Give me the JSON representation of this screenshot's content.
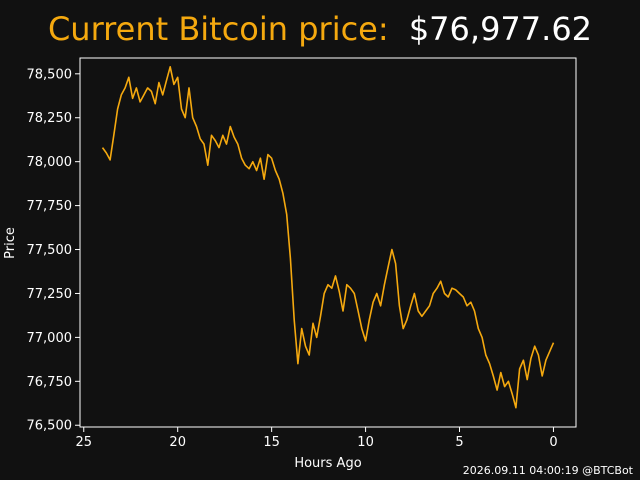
{
  "header": {
    "title_prefix": "Current Bitcoin price:",
    "current_price": "$76,977.62"
  },
  "footer": {
    "timestamp": "2026.09.11 04:00:19 @BTCBot"
  },
  "colors": {
    "background": "#111111",
    "line": "#f5a90f",
    "title_accent": "#f5a90f",
    "text": "#ffffff"
  },
  "chart_data": {
    "type": "line",
    "title": "",
    "xlabel": "Hours Ago",
    "ylabel": "Price",
    "x_reversed": true,
    "xlim": [
      25.2,
      -1.2
    ],
    "ylim": [
      76490,
      78590
    ],
    "xticks": [
      25,
      20,
      15,
      10,
      5,
      0
    ],
    "yticks": [
      76500,
      76750,
      77000,
      77250,
      77500,
      77750,
      78000,
      78250,
      78500
    ],
    "ytick_labels": [
      "76,500",
      "76,750",
      "77,000",
      "77,250",
      "77,500",
      "77,750",
      "78,000",
      "78,250",
      "78,500"
    ],
    "grid": false,
    "series": [
      {
        "x": [
          24.0,
          23.8,
          23.6,
          23.4,
          23.2,
          23.0,
          22.8,
          22.6,
          22.4,
          22.2,
          22.0,
          21.8,
          21.6,
          21.4,
          21.2,
          21.0,
          20.8,
          20.6,
          20.4,
          20.2,
          20.0,
          19.8,
          19.6,
          19.4,
          19.2,
          19.0,
          18.8,
          18.6,
          18.4,
          18.2,
          18.0,
          17.8,
          17.6,
          17.4,
          17.2,
          17.0,
          16.8,
          16.6,
          16.4,
          16.2,
          16.0,
          15.8,
          15.6,
          15.4,
          15.2,
          15.0,
          14.8,
          14.6,
          14.4,
          14.2,
          14.0,
          13.8,
          13.6,
          13.4,
          13.2,
          13.0,
          12.8,
          12.6,
          12.4,
          12.2,
          12.0,
          11.8,
          11.6,
          11.4,
          11.2,
          11.0,
          10.8,
          10.6,
          10.4,
          10.2,
          10.0,
          9.8,
          9.6,
          9.4,
          9.2,
          9.0,
          8.8,
          8.6,
          8.4,
          8.2,
          8.0,
          7.8,
          7.6,
          7.4,
          7.2,
          7.0,
          6.8,
          6.6,
          6.4,
          6.2,
          6.0,
          5.8,
          5.6,
          5.4,
          5.2,
          5.0,
          4.8,
          4.6,
          4.4,
          4.2,
          4.0,
          3.8,
          3.6,
          3.4,
          3.2,
          3.0,
          2.8,
          2.6,
          2.4,
          2.2,
          2.0,
          1.8,
          1.6,
          1.4,
          1.2,
          1.0,
          0.8,
          0.6,
          0.4,
          0.2,
          0.0
        ],
        "y": [
          78080,
          78050,
          78010,
          78150,
          78300,
          78380,
          78420,
          78480,
          78360,
          78420,
          78340,
          78380,
          78420,
          78400,
          78330,
          78450,
          78380,
          78460,
          78540,
          78440,
          78480,
          78300,
          78250,
          78420,
          78250,
          78200,
          78130,
          78100,
          77980,
          78150,
          78120,
          78080,
          78150,
          78100,
          78200,
          78140,
          78100,
          78020,
          77980,
          77960,
          78000,
          77950,
          78020,
          77900,
          78040,
          78020,
          77950,
          77900,
          77820,
          77700,
          77450,
          77100,
          76850,
          77050,
          76950,
          76900,
          77080,
          77000,
          77120,
          77250,
          77300,
          77280,
          77350,
          77260,
          77150,
          77300,
          77280,
          77250,
          77150,
          77050,
          76980,
          77100,
          77200,
          77250,
          77180,
          77300,
          77400,
          77500,
          77420,
          77180,
          77050,
          77100,
          77180,
          77250,
          77150,
          77120,
          77150,
          77180,
          77250,
          77280,
          77320,
          77250,
          77230,
          77280,
          77270,
          77250,
          77230,
          77180,
          77200,
          77150,
          77050,
          77000,
          76900,
          76850,
          76780,
          76700,
          76800,
          76720,
          76750,
          76680,
          76600,
          76820,
          76870,
          76760,
          76880,
          76950,
          76900,
          76780,
          76870,
          76920,
          76970
        ]
      }
    ]
  }
}
